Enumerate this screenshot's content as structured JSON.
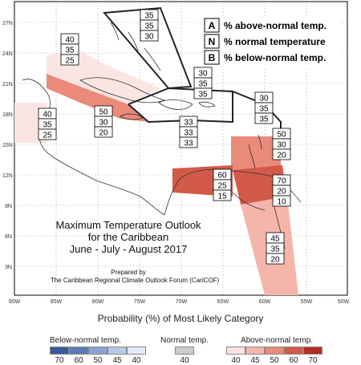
{
  "map": {
    "title_line1": "Maximum Temperature Outlook",
    "title_line2": "for the Caribbean",
    "title_line3": "June - July - August 2017",
    "prepared_by": "Prepared by",
    "forum": "The Caribbean Regional Climate Outlook Forum (CariCOF)",
    "lat_labels": [
      "27N",
      "24N",
      "21N",
      "18N",
      "15N",
      "12N",
      "9N",
      "6N",
      "3N"
    ],
    "lon_labels": [
      "90W",
      "85W",
      "80W",
      "75W",
      "70W",
      "65W",
      "60W",
      "55W",
      "50W"
    ]
  },
  "key": {
    "items": [
      {
        "letter": "A",
        "text": "% above-normal temp."
      },
      {
        "letter": "N",
        "text": "% normal temperature"
      },
      {
        "letter": "B",
        "text": "% below-normal temp."
      }
    ]
  },
  "forecasts": [
    {
      "id": "bahamas",
      "values": [
        "35",
        "35",
        "30"
      ]
    },
    {
      "id": "cuba-west",
      "values": [
        "40",
        "35",
        "25"
      ]
    },
    {
      "id": "central-america",
      "values": [
        "40",
        "35",
        "25"
      ]
    },
    {
      "id": "jamaica",
      "values": [
        "50",
        "30",
        "20"
      ]
    },
    {
      "id": "hispaniola",
      "values": [
        "33",
        "33",
        "33"
      ]
    },
    {
      "id": "puerto-rico",
      "values": [
        "30",
        "35",
        "35"
      ]
    },
    {
      "id": "leeward",
      "values": [
        "30",
        "35",
        "35"
      ]
    },
    {
      "id": "windward",
      "values": [
        "50",
        "30",
        "20"
      ]
    },
    {
      "id": "abc-islands",
      "values": [
        "60",
        "25",
        "15"
      ]
    },
    {
      "id": "trinidad",
      "values": [
        "70",
        "20",
        "10"
      ]
    },
    {
      "id": "guianas",
      "values": [
        "45",
        "35",
        "20"
      ]
    }
  ],
  "legend": {
    "title": "Probability (%) of Most Likely Category",
    "below_label": "Below-normal temp.",
    "normal_label": "Normal temp.",
    "above_label": "Above-normal temp.",
    "below_ticks": [
      "70",
      "60",
      "50",
      "45",
      "40"
    ],
    "normal_tick": "40",
    "above_ticks": [
      "40",
      "45",
      "50",
      "60",
      "70"
    ],
    "below_colors": [
      "#3a5a9a",
      "#5a7ab8",
      "#8aa3d2",
      "#b7c7e6",
      "#e2e9f5"
    ],
    "normal_color": "#cccccc",
    "above_colors": [
      "#fbe2e0",
      "#f4b5ab",
      "#e98a7a",
      "#d35a48",
      "#b32e23"
    ]
  }
}
